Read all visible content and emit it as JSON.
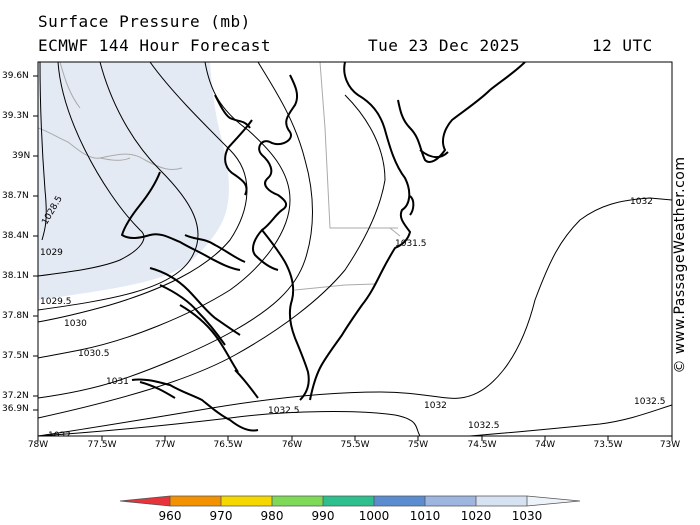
{
  "header": {
    "title_line1": "Surface Pressure (mb)",
    "model_line": "ECMWF 144 Hour Forecast",
    "valid_date": "Tue 23 Dec 2025",
    "valid_time": "12 UTC"
  },
  "map": {
    "lat_labels": [
      "39.6N",
      "39.3N",
      "39N",
      "38.7N",
      "38.4N",
      "38.1N",
      "37.8N",
      "37.5N",
      "37.2N",
      "36.9N"
    ],
    "lon_labels": [
      "78W",
      "77.5W",
      "77W",
      "76.5W",
      "76W",
      "75.5W",
      "75W",
      "74.5W",
      "74W",
      "73.5W",
      "73W"
    ],
    "isobars": [
      {
        "label": "1028.5"
      },
      {
        "label": "1029"
      },
      {
        "label": "1029.5"
      },
      {
        "label": "1030"
      },
      {
        "label": "1030.5"
      },
      {
        "label": "1031"
      },
      {
        "label": "1031.5"
      },
      {
        "label": "1032"
      },
      {
        "label": "1032"
      },
      {
        "label": "1032.5"
      },
      {
        "label": "1032.5"
      },
      {
        "label": "1032.5"
      },
      {
        "label": "1032"
      }
    ],
    "colors": {
      "land_shade": "#e4eaf4",
      "isobar": "#000000",
      "state_border": "#aaaaaa"
    }
  },
  "watermark": "© www.PassageWeather.com",
  "colorbar": {
    "labels": [
      "960",
      "970",
      "980",
      "990",
      "1000",
      "1010",
      "1020",
      "1030"
    ],
    "colors": [
      "#e8333a",
      "#f39200",
      "#f5d800",
      "#7ed957",
      "#2ebf8f",
      "#5b8ccf",
      "#9db5df",
      "#d6e1f2",
      "#eef2f9"
    ]
  }
}
